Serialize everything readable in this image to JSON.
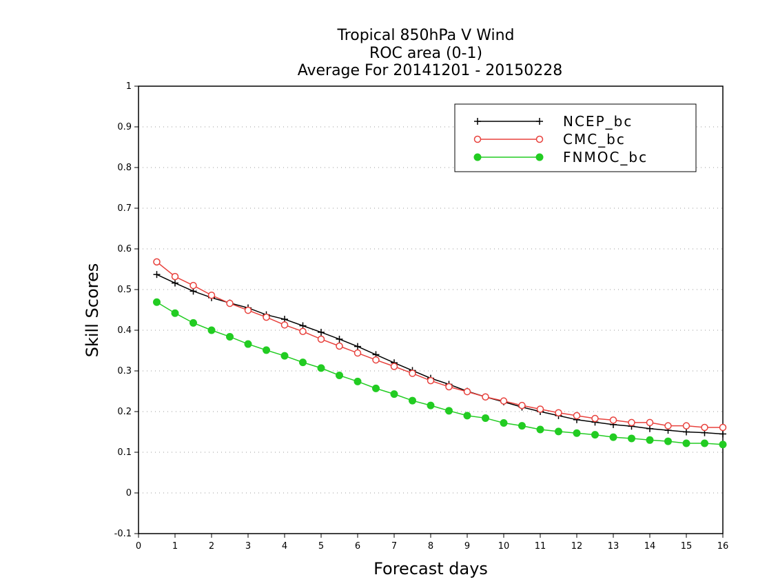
{
  "chart_data": {
    "type": "line",
    "title": [
      "Tropical 850hPa V Wind",
      "ROC area (0-1)",
      "Average For 20141201 - 20150228"
    ],
    "xlabel": "Forecast days",
    "ylabel": "Skill Scores",
    "xlim": [
      0,
      16
    ],
    "ylim": [
      -0.1,
      1
    ],
    "xticks": [
      0,
      1,
      2,
      3,
      4,
      5,
      6,
      7,
      8,
      9,
      10,
      11,
      12,
      13,
      14,
      15,
      16
    ],
    "xtick_labels": [
      "0",
      "1",
      "2",
      "3",
      "4",
      "5",
      "6",
      "7",
      "8",
      "9",
      "10",
      "11",
      "12",
      "13",
      "14",
      "15",
      "16"
    ],
    "yticks": [
      -0.1,
      0,
      0.1,
      0.2,
      0.3,
      0.4,
      0.5,
      0.6,
      0.7,
      0.8,
      0.9,
      1
    ],
    "ytick_labels": [
      "-0.1",
      "0",
      "0.1",
      "0.2",
      "0.3",
      "0.4",
      "0.5",
      "0.6",
      "0.7",
      "0.8",
      "0.9",
      "1"
    ],
    "grid": "horizontal dotted",
    "legend_position": "top-right",
    "x": [
      0.5,
      1,
      1.5,
      2,
      2.5,
      3,
      3.5,
      4,
      4.5,
      5,
      5.5,
      6,
      6.5,
      7,
      7.5,
      8,
      8.5,
      9,
      9.5,
      10,
      10.5,
      11,
      11.5,
      12,
      12.5,
      13,
      13.5,
      14,
      14.5,
      15,
      15.5,
      16
    ],
    "series": [
      {
        "name": "NCEP_bc",
        "color": "#000000",
        "marker": "plus",
        "values": [
          0.537,
          0.516,
          0.496,
          0.48,
          0.467,
          0.455,
          0.438,
          0.427,
          0.411,
          0.395,
          0.378,
          0.36,
          0.34,
          0.32,
          0.301,
          0.282,
          0.267,
          0.25,
          0.236,
          0.224,
          0.211,
          0.2,
          0.19,
          0.18,
          0.174,
          0.168,
          0.164,
          0.158,
          0.154,
          0.15,
          0.148,
          0.145
        ]
      },
      {
        "name": "CMC_bc",
        "color": "#e8413c",
        "marker": "open-circle",
        "values": [
          0.568,
          0.532,
          0.51,
          0.486,
          0.466,
          0.449,
          0.432,
          0.413,
          0.397,
          0.378,
          0.361,
          0.344,
          0.327,
          0.311,
          0.294,
          0.276,
          0.261,
          0.249,
          0.236,
          0.226,
          0.215,
          0.206,
          0.197,
          0.19,
          0.183,
          0.179,
          0.173,
          0.173,
          0.165,
          0.165,
          0.161,
          0.161
        ]
      },
      {
        "name": "FNMOC_bc",
        "color": "#22cc22",
        "marker": "filled-circle",
        "values": [
          0.469,
          0.442,
          0.418,
          0.4,
          0.384,
          0.366,
          0.351,
          0.337,
          0.321,
          0.307,
          0.289,
          0.274,
          0.257,
          0.243,
          0.227,
          0.215,
          0.202,
          0.19,
          0.184,
          0.172,
          0.165,
          0.156,
          0.151,
          0.147,
          0.143,
          0.137,
          0.134,
          0.13,
          0.127,
          0.122,
          0.122,
          0.119
        ]
      }
    ]
  }
}
